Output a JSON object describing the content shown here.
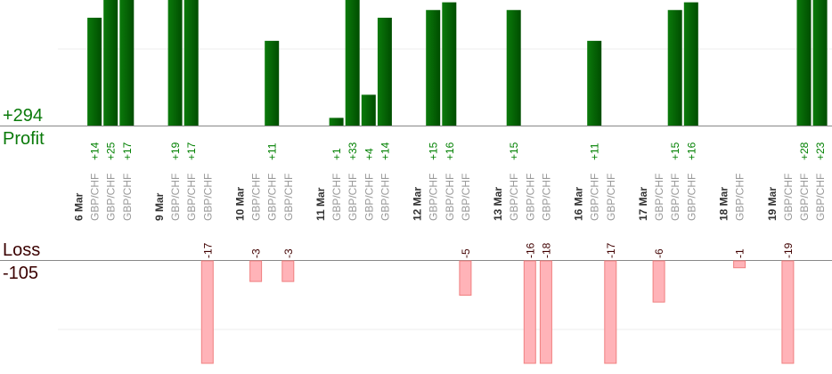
{
  "summary": {
    "profit_total": "+294",
    "profit_label": "Profit",
    "loss_label": "Loss",
    "loss_total": "-105"
  },
  "colors": {
    "profit_bar": "#006400",
    "profit_text": "#008000",
    "loss_bar": "#ffb3b8",
    "loss_border": "#f08080",
    "loss_text": "#400000",
    "date_text": "#333333",
    "pair_text": "#999999"
  },
  "chart_data": {
    "type": "bar",
    "title": "",
    "xlabel": "",
    "ylabel": "",
    "days": [
      {
        "date": "6 Mar",
        "trades": [
          {
            "pair": "GBP/CHF",
            "value": 14
          },
          {
            "pair": "GBP/CHF",
            "value": 25
          },
          {
            "pair": "GBP/CHF",
            "value": 17
          }
        ]
      },
      {
        "date": "9 Mar",
        "trades": [
          {
            "pair": "GBP/CHF",
            "value": 19
          },
          {
            "pair": "GBP/CHF",
            "value": 17
          },
          {
            "pair": "GBP/CHF",
            "value": -17
          }
        ]
      },
      {
        "date": "10 Mar",
        "trades": [
          {
            "pair": "GBP/CHF",
            "value": -3
          },
          {
            "pair": "GBP/CHF",
            "value": 11
          },
          {
            "pair": "GBP/CHF",
            "value": -3
          }
        ]
      },
      {
        "date": "11 Mar",
        "trades": [
          {
            "pair": "GBP/CHF",
            "value": 1
          },
          {
            "pair": "GBP/CHF",
            "value": 33
          },
          {
            "pair": "GBP/CHF",
            "value": 4
          },
          {
            "pair": "GBP/CHF",
            "value": 14
          }
        ]
      },
      {
        "date": "12 Mar",
        "trades": [
          {
            "pair": "GBP/CHF",
            "value": 15
          },
          {
            "pair": "GBP/CHF",
            "value": 16
          },
          {
            "pair": "GBP/CHF",
            "value": -5
          }
        ]
      },
      {
        "date": "13 Mar",
        "trades": [
          {
            "pair": "GBP/CHF",
            "value": 15
          },
          {
            "pair": "GBP/CHF",
            "value": -16
          },
          {
            "pair": "GBP/CHF",
            "value": -18
          }
        ]
      },
      {
        "date": "16 Mar",
        "trades": [
          {
            "pair": "GBP/CHF",
            "value": 11
          },
          {
            "pair": "GBP/CHF",
            "value": -17
          }
        ]
      },
      {
        "date": "17 Mar",
        "trades": [
          {
            "pair": "GBP/CHF",
            "value": -6
          },
          {
            "pair": "GBP/CHF",
            "value": 15
          },
          {
            "pair": "GBP/CHF",
            "value": 16
          }
        ]
      },
      {
        "date": "18 Mar",
        "trades": [
          {
            "pair": "GBP/CHF",
            "value": -1
          }
        ]
      },
      {
        "date": "19 Mar",
        "trades": [
          {
            "pair": "GBP/CHF",
            "value": -19
          },
          {
            "pair": "GBP/CHF",
            "value": 28
          },
          {
            "pair": "GBP/CHF",
            "value": 23
          }
        ]
      }
    ]
  }
}
